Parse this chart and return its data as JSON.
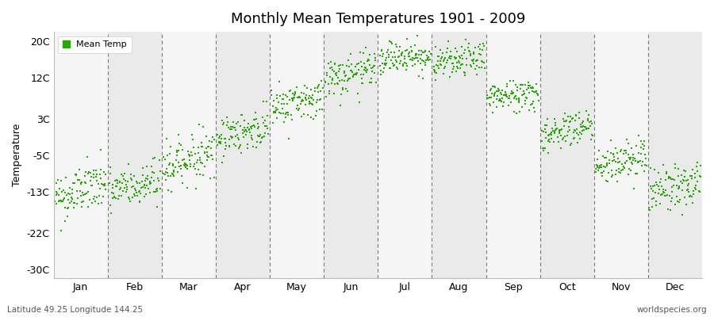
{
  "title": "Monthly Mean Temperatures 1901 - 2009",
  "ylabel": "Temperature",
  "yticks": [
    20,
    12,
    3,
    -5,
    -13,
    -22,
    -30
  ],
  "ytick_labels": [
    "20C",
    "12C",
    "3C",
    "-5C",
    "-13C",
    "-22C",
    "-30C"
  ],
  "ylim": [
    -32,
    22
  ],
  "months": [
    "Jan",
    "Feb",
    "Mar",
    "Apr",
    "May",
    "Jun",
    "Jul",
    "Aug",
    "Sep",
    "Oct",
    "Nov",
    "Dec"
  ],
  "month_means": [
    -14.5,
    -13.0,
    -7.5,
    -1.0,
    5.5,
    11.5,
    16.0,
    15.0,
    7.5,
    -0.5,
    -7.5,
    -13.0
  ],
  "month_stds": [
    2.8,
    2.5,
    2.5,
    2.2,
    2.2,
    2.2,
    1.8,
    1.8,
    1.8,
    2.0,
    2.3,
    2.5
  ],
  "month_trend": [
    0.03,
    0.02,
    0.03,
    0.02,
    0.02,
    0.02,
    0.01,
    0.01,
    0.01,
    0.02,
    0.02,
    0.02
  ],
  "n_years": 109,
  "dot_color": "#22aa00",
  "dot_size": 3,
  "bg_color_light": "#f5f5f5",
  "bg_color_dark": "#eaeaea",
  "dashed_line_color": "#777777",
  "legend_label": "Mean Temp",
  "bottom_left_text": "Latitude 49.25 Longitude 144.25",
  "bottom_right_text": "worldspecies.org",
  "figure_bg": "#ffffff"
}
